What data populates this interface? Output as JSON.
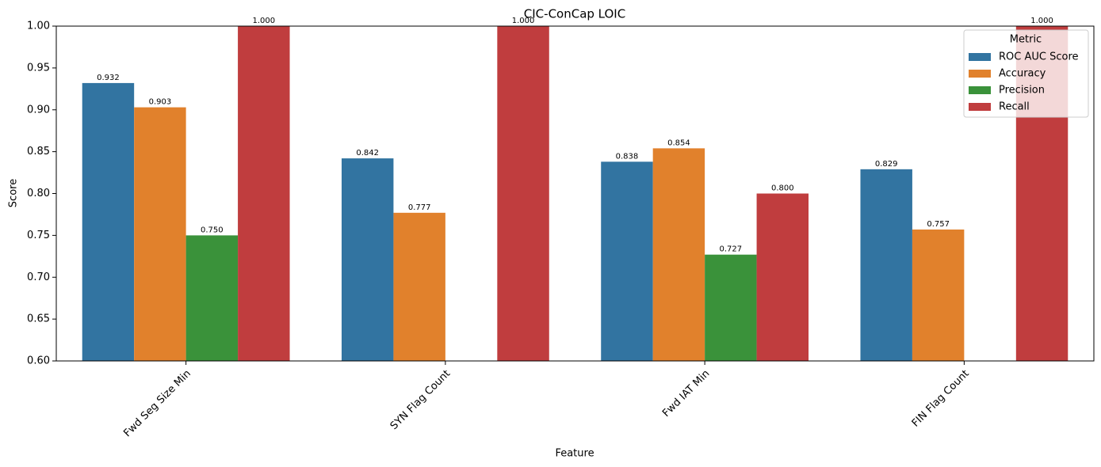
{
  "chart_data": {
    "type": "bar",
    "title": "CIC-ConCap LOIC",
    "x_label": "Feature",
    "y_label": "Score",
    "categories": [
      "Fwd Seg Size Min",
      "SYN Flag Count",
      "Fwd IAT Min",
      "FIN Flag Count"
    ],
    "series": [
      {
        "name": "ROC AUC Score",
        "color": "#3274a1",
        "values": [
          0.932,
          0.842,
          0.838,
          0.829
        ],
        "value_labels": [
          "0.932",
          "0.842",
          "0.838",
          "0.829"
        ]
      },
      {
        "name": "Accuracy",
        "color": "#e1812c",
        "values": [
          0.903,
          0.777,
          0.854,
          0.757
        ],
        "value_labels": [
          "0.903",
          "0.777",
          "0.854",
          "0.757"
        ]
      },
      {
        "name": "Precision",
        "color": "#3a923a",
        "values": [
          0.75,
          null,
          0.727,
          null
        ],
        "value_labels": [
          "0.750",
          null,
          "0.727",
          null
        ]
      },
      {
        "name": "Recall",
        "color": "#c03d3e",
        "values": [
          1.0,
          1.0,
          0.8,
          1.0
        ],
        "value_labels": [
          "1.000",
          "1.000",
          "0.800",
          "1.000"
        ]
      }
    ],
    "legend_title": "Metric",
    "legend": "upper right",
    "ylim": [
      0.6,
      1.0
    ],
    "yticks": [
      {
        "value": 0.6,
        "label": "0.60"
      },
      {
        "value": 0.65,
        "label": "0.65"
      },
      {
        "value": 0.7,
        "label": "0.70"
      },
      {
        "value": 0.75,
        "label": "0.75"
      },
      {
        "value": 0.8,
        "label": "0.80"
      },
      {
        "value": 0.85,
        "label": "0.85"
      },
      {
        "value": 0.9,
        "label": "0.90"
      },
      {
        "value": 0.95,
        "label": "0.95"
      },
      {
        "value": 1.0,
        "label": "1.00"
      }
    ],
    "grid": false
  }
}
